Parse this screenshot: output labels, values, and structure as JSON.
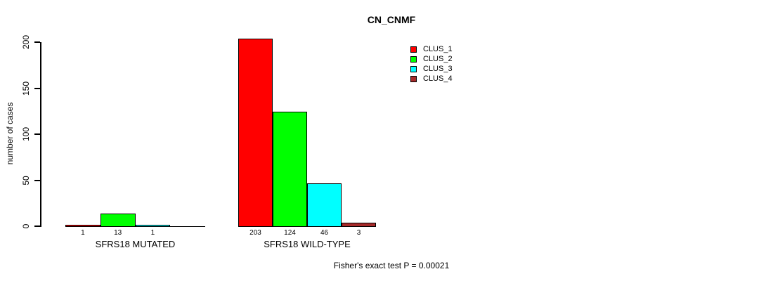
{
  "chart_data": {
    "type": "bar",
    "title": "CN_CNMF",
    "xlabel": "",
    "ylabel": "number of cases",
    "ylim": [
      0,
      200
    ],
    "yticks": [
      0,
      50,
      100,
      150,
      200
    ],
    "grid": false,
    "legend_position": "top-right",
    "legend": [
      {
        "name": "CLUS_1",
        "color": "#FF0000"
      },
      {
        "name": "CLUS_2",
        "color": "#00FF00"
      },
      {
        "name": "CLUS_3",
        "color": "#00FFFF"
      },
      {
        "name": "CLUS_4",
        "color": "#A52A2A"
      }
    ],
    "groups": [
      {
        "label": "SFRS18 MUTATED",
        "values": [
          1,
          13,
          1,
          0
        ],
        "value_labels": [
          "1",
          "13",
          "1",
          ""
        ]
      },
      {
        "label": "SFRS18 WILD-TYPE",
        "values": [
          203,
          124,
          46,
          3
        ],
        "value_labels": [
          "203",
          "124",
          "46",
          "3"
        ]
      }
    ],
    "annotation": "Fisher's exact test P = 0.00021"
  }
}
